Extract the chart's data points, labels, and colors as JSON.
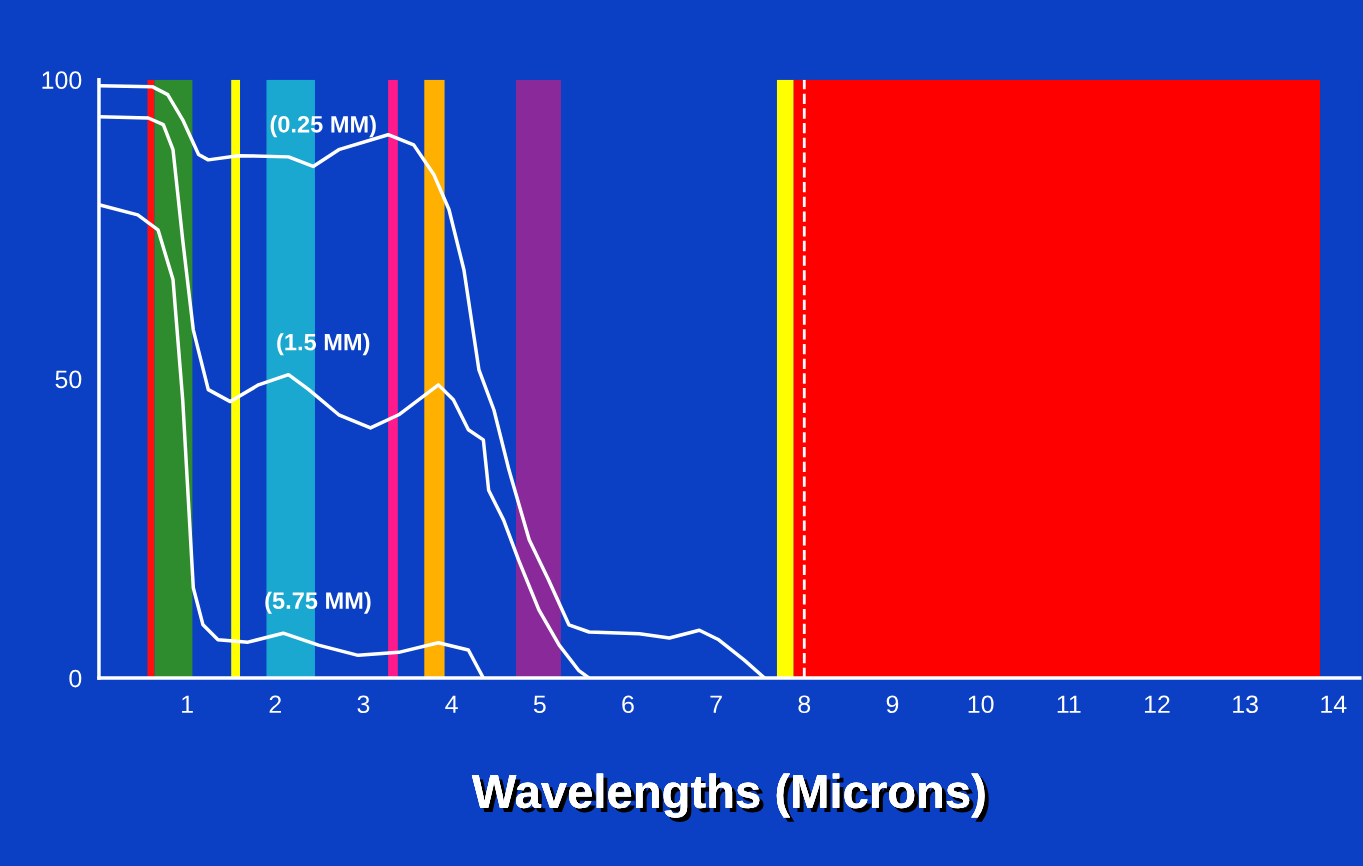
{
  "chart_data": {
    "type": "line",
    "xlabel": "Wavelengths (Microns)",
    "xlim": [
      0,
      14.3
    ],
    "xticks": [
      1,
      2,
      3,
      4,
      5,
      6,
      7,
      8,
      9,
      10,
      11,
      12,
      13,
      14
    ],
    "ylim": [
      0,
      100
    ],
    "yticks": [
      0,
      50,
      100
    ],
    "grid": false,
    "legend": false,
    "marker": "none",
    "line_style": "solid",
    "bands": [
      {
        "axis": "x",
        "from": 0.55,
        "to": 0.63,
        "color": "#ff1010"
      },
      {
        "axis": "x",
        "from": 0.63,
        "to": 1.06,
        "color": "#2e8b2e"
      },
      {
        "axis": "x",
        "from": 1.5,
        "to": 1.6,
        "color": "#ffff00"
      },
      {
        "axis": "x",
        "from": 1.9,
        "to": 2.45,
        "color": "#1aa8d0"
      },
      {
        "axis": "x",
        "from": 3.28,
        "to": 3.39,
        "color": "#ff1a8c"
      },
      {
        "axis": "x",
        "from": 3.69,
        "to": 3.92,
        "color": "#ffb000"
      },
      {
        "axis": "x",
        "from": 4.73,
        "to": 5.24,
        "color": "#8a2a9a"
      },
      {
        "axis": "x",
        "from": 7.69,
        "to": 7.88,
        "color": "#ffff00"
      },
      {
        "axis": "x",
        "from": 7.88,
        "to": 13.85,
        "color": "#ff0000"
      }
    ],
    "ref_lines": [
      {
        "axis": "x",
        "value": 8.0,
        "color": "#ffffff",
        "line_style": "dashed"
      }
    ],
    "series": [
      {
        "name": "(0.25 MM)",
        "color": "#ffffff",
        "x": [
          0,
          0.61,
          0.78,
          0.95,
          1.13,
          1.24,
          1.58,
          2.15,
          2.43,
          2.72,
          3.28,
          3.57,
          3.8,
          3.97,
          4.14,
          4.31,
          4.48,
          4.65,
          4.88,
          5.1,
          5.33,
          5.56,
          6.13,
          6.47,
          6.81,
          7.03,
          7.32,
          7.55
        ],
        "values": [
          99,
          98.8,
          97.5,
          93.3,
          87.5,
          86.6,
          87.3,
          87.1,
          85.5,
          88.3,
          90.8,
          89.1,
          84.1,
          78.3,
          68.2,
          51.5,
          44.8,
          34.8,
          23.1,
          16.4,
          8.9,
          7.7,
          7.4,
          6.7,
          8.0,
          6.4,
          3.0,
          0
        ]
      },
      {
        "name": "(1.5 MM)",
        "color": "#ffffff",
        "x": [
          0,
          0.56,
          0.73,
          0.84,
          0.95,
          1.07,
          1.24,
          1.49,
          1.81,
          2.15,
          2.38,
          2.72,
          3.08,
          3.4,
          3.85,
          4.02,
          4.19,
          4.36,
          4.42,
          4.59,
          4.76,
          4.99,
          5.22,
          5.44,
          5.56
        ],
        "values": [
          93.8,
          93.6,
          92.5,
          88.3,
          73.2,
          58.2,
          48.2,
          46.2,
          49,
          50.7,
          48.2,
          44,
          41.8,
          44,
          49,
          46.5,
          41.5,
          39.8,
          31.4,
          26.4,
          19.7,
          11.4,
          5.5,
          1.3,
          0
        ]
      },
      {
        "name": "(5.75 MM)",
        "color": "#ffffff",
        "x": [
          0,
          0.44,
          0.67,
          0.84,
          0.95,
          1.07,
          1.18,
          1.35,
          1.69,
          2.09,
          2.49,
          2.94,
          3.4,
          3.85,
          4.19,
          4.36
        ],
        "values": [
          79.1,
          77.4,
          74.9,
          66.6,
          46.5,
          15.1,
          8.9,
          6.4,
          6.0,
          7.5,
          5.5,
          3.8,
          4.3,
          5.9,
          4.7,
          0
        ]
      }
    ]
  }
}
